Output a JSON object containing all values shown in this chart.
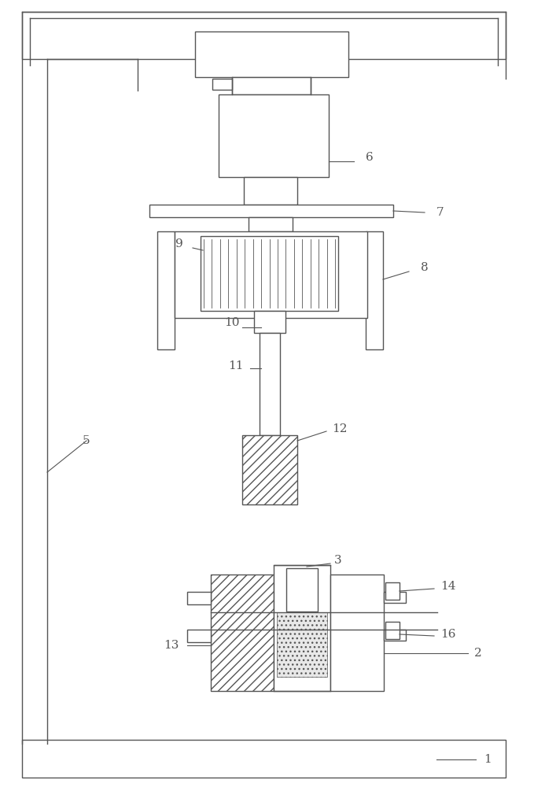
{
  "bg_color": "#ffffff",
  "line_color": "#555555",
  "fig_width": 6.79,
  "fig_height": 10.0,
  "lw": 1.0
}
